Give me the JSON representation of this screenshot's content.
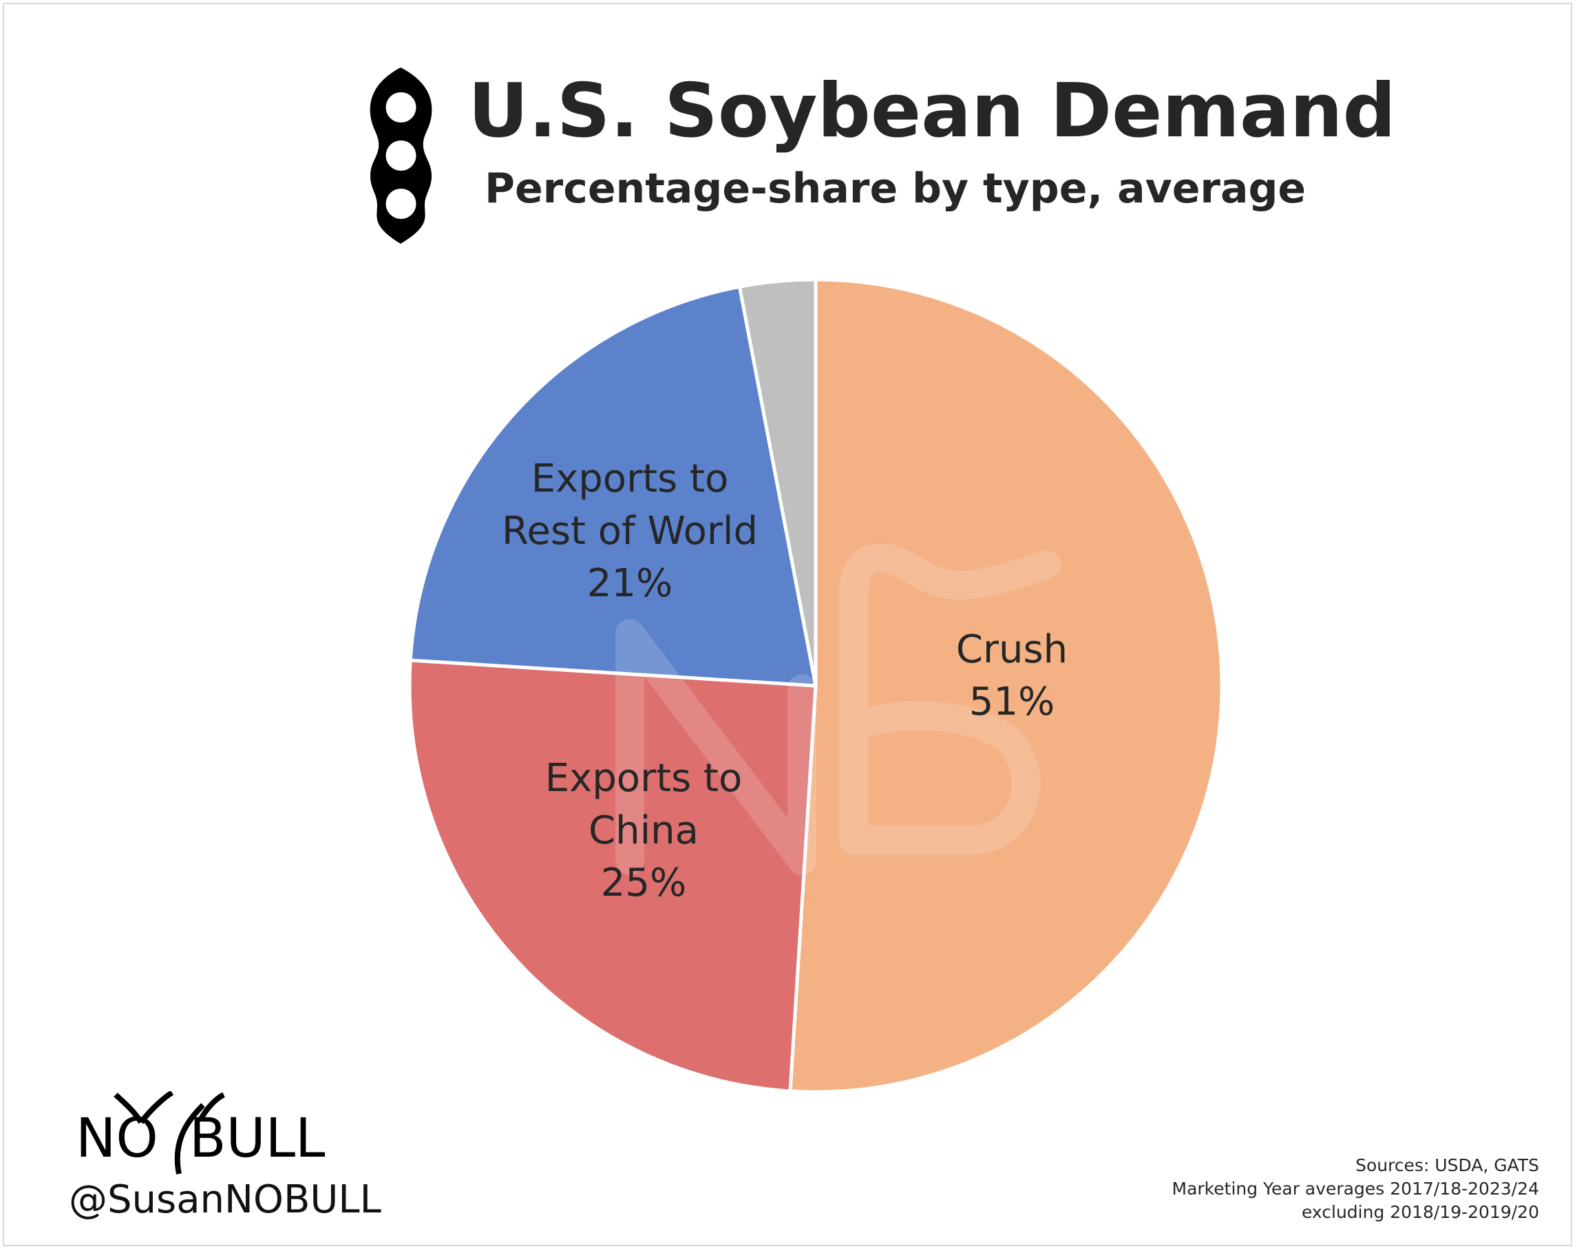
{
  "header": {
    "title": "U.S. Soybean Demand",
    "subtitle": "Percentage-share by type, average",
    "icon": "soybean-pod-icon"
  },
  "chart_data": {
    "type": "pie",
    "title": "U.S. Soybean Demand",
    "subtitle": "Percentage-share by type, average",
    "slices": [
      {
        "name": "Crush",
        "label_lines": [
          "Crush"
        ],
        "value": 51,
        "value_label": "51%",
        "color": "#f4b183"
      },
      {
        "name": "Exports to China",
        "label_lines": [
          "Exports to",
          "China"
        ],
        "value": 25,
        "value_label": "25%",
        "color": "#dd6f6f"
      },
      {
        "name": "Exports to Rest of World",
        "label_lines": [
          "Exports to",
          "Rest of World"
        ],
        "value": 21,
        "value_label": "21%",
        "color": "#5b82cb"
      },
      {
        "name": "",
        "label_lines": [],
        "value": 3,
        "value_label": "",
        "color": "#bfbfbf"
      }
    ],
    "start_angle": "12 o'clock, clockwise",
    "legend": "none"
  },
  "footer": {
    "brand_logo": "NO BULL",
    "handle": "@SusanNOBULL",
    "sources": [
      "Sources: USDA, GATS",
      "Marketing Year averages 2017/18-2023/24",
      "excluding 2018/19-2019/20"
    ]
  }
}
